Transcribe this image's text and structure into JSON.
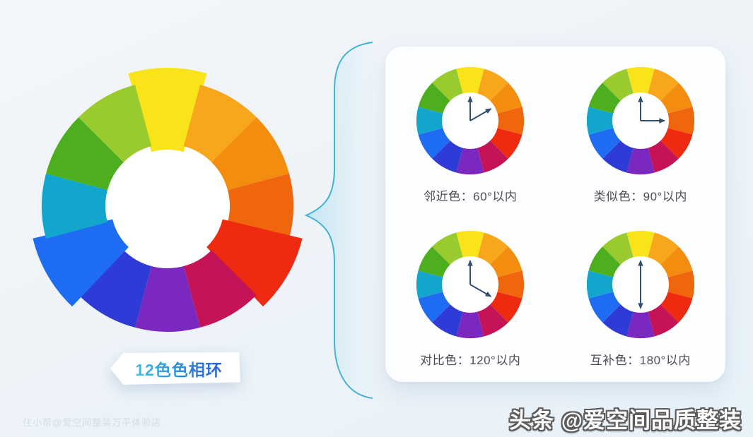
{
  "colors": {
    "wheel_palette": [
      "#F9E41A",
      "#F8A71C",
      "#F28D0F",
      "#F0660D",
      "#EE2B10",
      "#C41356",
      "#7A28BF",
      "#2F3BD6",
      "#1E6CF2",
      "#12A6CF",
      "#4DAF1E",
      "#99CB2E"
    ],
    "brace_stroke": "#44B2D6",
    "brace_fill": "#BFE4F3",
    "arrow": "#2F4E70",
    "label_text": "#4d4d52",
    "badge_text_gradient": [
      "#3CC2E6",
      "#2A5FD6"
    ]
  },
  "main_wheel": {
    "label": "12色色相环",
    "segment_count": 12,
    "popped_segment_indices": [
      0,
      4,
      8
    ]
  },
  "panel": {
    "schemes": [
      {
        "label": "邻近色：60°以内",
        "angle": 60
      },
      {
        "label": "类似色：90°以内",
        "angle": 90
      },
      {
        "label": "对比色：120°以内",
        "angle": 120
      },
      {
        "label": "互补色：180°以内",
        "angle": 180
      }
    ]
  },
  "watermarks": {
    "bottom_left": "住小帮@爱空间整装万平体验店",
    "bottom_right": "头条 @爱空间品质整装"
  }
}
